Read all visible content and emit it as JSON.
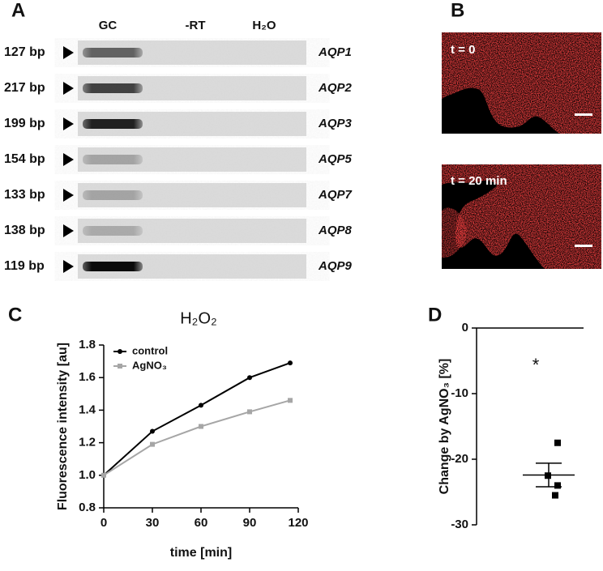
{
  "panels": {
    "a": "A",
    "b": "B",
    "c": "C",
    "d": "D"
  },
  "gel": {
    "headers": [
      "GC",
      "-RT",
      "H₂O"
    ],
    "rows": [
      {
        "size": "127 bp",
        "gene": "AQP1"
      },
      {
        "size": "217 bp",
        "gene": "AQP2"
      },
      {
        "size": "199 bp",
        "gene": "AQP3"
      },
      {
        "size": "154 bp",
        "gene": "AQP5"
      },
      {
        "size": "133 bp",
        "gene": "AQP7"
      },
      {
        "size": "138 bp",
        "gene": "AQP8"
      },
      {
        "size": "119 bp",
        "gene": "AQP9"
      }
    ]
  },
  "micrographs": [
    "t = 0",
    "t = 20 min"
  ],
  "chart_data": [
    {
      "type": "line",
      "title": "H₂O₂",
      "x_label": "time [min]",
      "y_label": "Fluorescence intensity [au]",
      "x": [
        0,
        30,
        60,
        90,
        115
      ],
      "series": [
        {
          "name": "control",
          "color": "#000000",
          "values": [
            1.0,
            1.27,
            1.43,
            1.6,
            1.69
          ]
        },
        {
          "name": "AgNO₃",
          "color": "#a6a6a6",
          "values": [
            1.0,
            1.19,
            1.3,
            1.39,
            1.46
          ]
        }
      ],
      "xlim": [
        0,
        120
      ],
      "xticks": [
        0,
        30,
        60,
        90,
        120
      ],
      "ylim": [
        0.8,
        1.8
      ],
      "yticks": [
        0.8,
        {
          "value": 1,
          "label": "1.0"
        },
        1.2,
        1.4,
        1.6,
        1.8
      ],
      "legend": "upper left"
    },
    {
      "type": "dot",
      "y_label": "Change by AgNO₃ [%]",
      "values": [
        -17.5,
        -22.5,
        -24,
        -25.5
      ],
      "mean": -22.4,
      "error": 1.8,
      "annotation": "*",
      "color": "#000000",
      "ylim": [
        -30,
        0
      ],
      "yticks": [
        0,
        -10,
        -20,
        -30
      ]
    }
  ]
}
